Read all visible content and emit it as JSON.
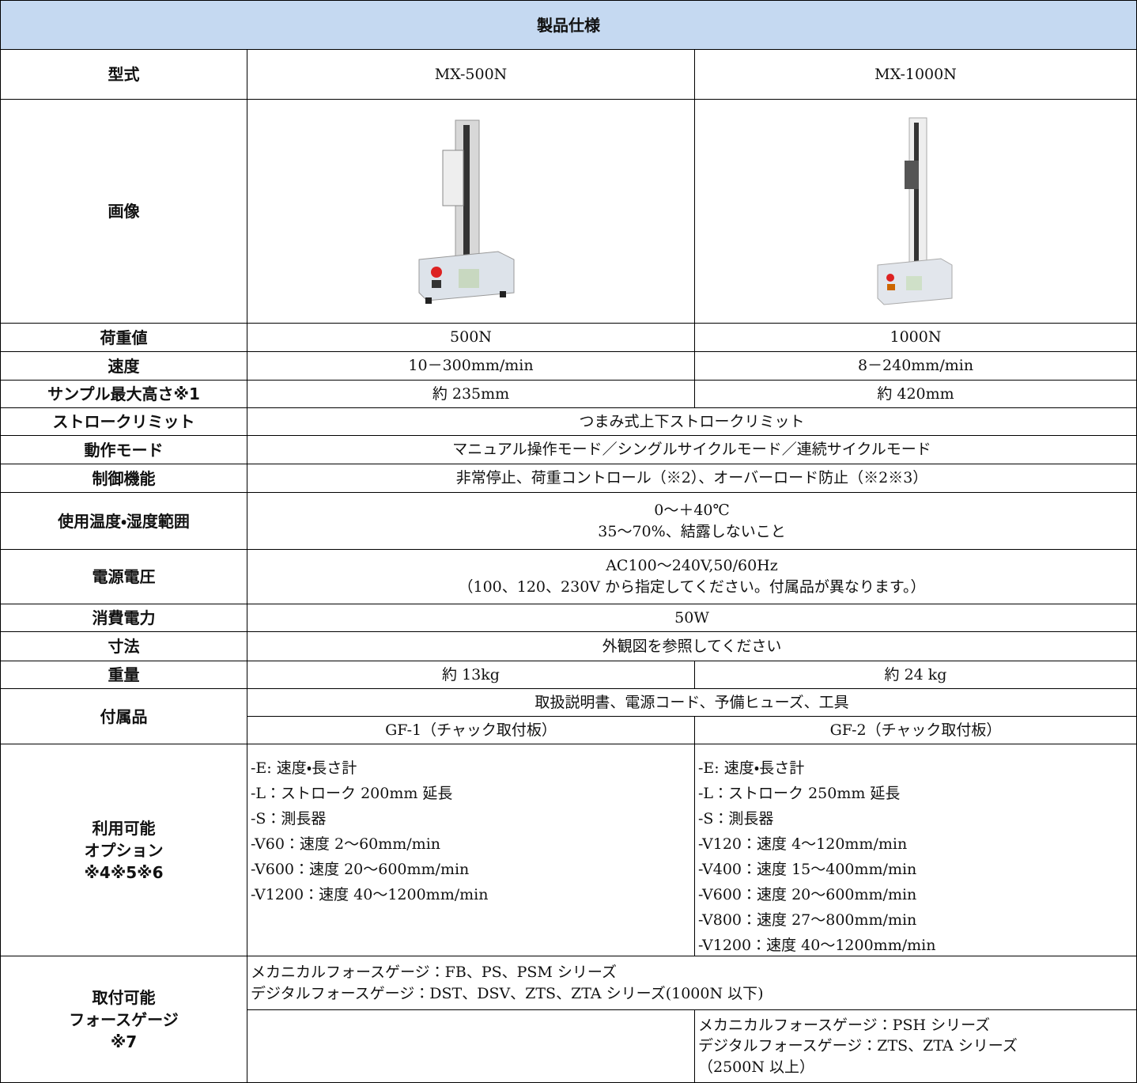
{
  "header": {
    "title": "製品仕様"
  },
  "table": {
    "rows": [
      {
        "label": [
          "型式"
        ],
        "cells": [
          [
            "MX-500N"
          ],
          [
            "MX-1000N"
          ]
        ]
      },
      {
        "label": [
          "画像"
        ]
      },
      {
        "label": [
          "荷重値"
        ],
        "cells": [
          [
            "500N"
          ],
          [
            "1000N"
          ]
        ]
      },
      {
        "label": [
          "速度"
        ],
        "cells": [
          [
            "10－300mm/min"
          ],
          [
            "8－240mm/min"
          ]
        ]
      },
      {
        "label": [
          "サンプル最大高さ※1"
        ],
        "cells": [
          [
            "約 235mm"
          ],
          [
            "約 420mm"
          ]
        ]
      },
      {
        "label": [
          "ストロークリミット"
        ],
        "cells": [
          [
            "つまみ式上下ストロークリミット"
          ]
        ]
      },
      {
        "label": [
          "動作モード"
        ],
        "cells": [
          [
            "マニュアル操作モード／シングルサイクルモード／連続サイクルモード"
          ]
        ]
      },
      {
        "label": [
          "制御機能"
        ],
        "cells": [
          [
            "非常停止、荷重コントロール（※2）、オーバーロード防止（※2※3）"
          ]
        ]
      },
      {
        "label": [
          "使用温度・湿度範囲"
        ],
        "cells": [
          [
            "0～＋40℃",
            "35～70%、結露しないこと"
          ]
        ]
      },
      {
        "label": [
          "電源電圧"
        ],
        "cells": [
          [
            "AC100～240V,50/60Hz",
            "（100、120、230V から指定してください。付属品が異なります。）"
          ]
        ]
      },
      {
        "label": [
          "消費電力"
        ],
        "cells": [
          [
            "50W"
          ]
        ]
      },
      {
        "label": [
          "寸法"
        ],
        "cells": [
          [
            "外観図を参照してください"
          ]
        ]
      },
      {
        "label": [
          "重量"
        ],
        "cells": [
          [
            "約 13kg"
          ],
          [
            "約 24 kg"
          ]
        ]
      },
      {
        "label": [
          "付属品"
        ],
        "common": [
          "取扱説明書、電源コード、予備ヒューズ、工具"
        ],
        "cells": [
          [
            "GF-1（チャック取付板）"
          ],
          [
            "GF-2（チャック取付板）"
          ]
        ]
      },
      {
        "label": [
          "利用可能",
          "オプション",
          "※4※5※6"
        ],
        "cells": [
          [
            "-E: 速度・長さ計",
            "-L：ストローク 200mm 延長",
            "-S：測長器",
            "-V60：速度 2～60mm/min",
            "-V600：速度 20～600mm/min",
            "-V1200：速度 40～1200mm/min"
          ],
          [
            "-E: 速度・長さ計",
            "-L：ストローク 250mm 延長",
            "-S：測長器",
            "-V120：速度 4～120mm/min",
            "-V400：速度 15～400mm/min",
            "-V600：速度 20～600mm/min",
            "-V800：速度 27～800mm/min",
            "-V1200：速度 40～1200mm/min"
          ]
        ]
      },
      {
        "label": [
          "取付可能",
          "フォースゲージ",
          "※7"
        ],
        "common": [
          "メカニカルフォースゲージ：FB、PS、PSM シリーズ",
          "デジタルフォースゲージ：DST、DSV、ZTS、ZTA シリーズ(1000N 以下)"
        ],
        "cells": [
          [],
          [
            "メカニカルフォースゲージ：PSH シリーズ",
            "デジタルフォースゲージ：ZTS、ZTA シリーズ",
            "（2500N 以上）"
          ]
        ]
      }
    ]
  }
}
